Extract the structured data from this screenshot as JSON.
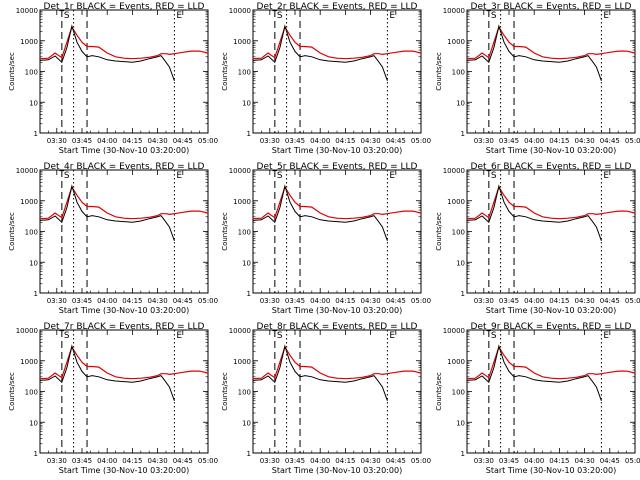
{
  "chart_data": {
    "type": "line",
    "common": {
      "ylabel": "Counts/sec",
      "xlabel": "Start Time (30-Nov-10 03:20:00)",
      "xticks": [
        "03:30",
        "03:45",
        "04:00",
        "04:15",
        "04:30",
        "04:45",
        "05:00"
      ],
      "xtick_minutes": [
        10,
        25,
        40,
        55,
        70,
        85,
        100
      ],
      "xlim_minutes": [
        0,
        100
      ],
      "yscale": "log",
      "ylim": [
        1,
        10000
      ],
      "yticks": [
        1,
        10,
        100,
        1000,
        10000
      ],
      "ytick_labels": [
        "1",
        "10",
        "100",
        "1000",
        "10000"
      ],
      "series_names": [
        "Events",
        "LLD"
      ],
      "series_colors": [
        "#000000",
        "#e00000"
      ],
      "markers": [
        {
          "label": "S",
          "minute": 13,
          "style": "dashed"
        },
        {
          "label": "",
          "minute": 20,
          "style": "dotted"
        },
        {
          "label": "",
          "minute": 28,
          "style": "dashed"
        },
        {
          "label": "E",
          "minute": 80,
          "style": "dotted"
        }
      ]
    },
    "panels": [
      {
        "title": "Det_1r BLACK = Events, RED = LLD"
      },
      {
        "title": "Det_2r BLACK = Events, RED = LLD"
      },
      {
        "title": "Det_3r BLACK = Events, RED = LLD"
      },
      {
        "title": "Det_4r BLACK = Events, RED = LLD"
      },
      {
        "title": "Det_5r BLACK = Events, RED = LLD"
      },
      {
        "title": "Det_6r BLACK = Events, RED = LLD"
      },
      {
        "title": "Det_7r BLACK = Events, RED = LLD"
      },
      {
        "title": "Det_8r BLACK = Events, RED = LLD"
      },
      {
        "title": "Det_9r BLACK = Events, RED = LLD"
      }
    ],
    "x": [
      0,
      5,
      9,
      13,
      16,
      19,
      22,
      25,
      28,
      31,
      35,
      40,
      45,
      50,
      55,
      60,
      65,
      70,
      72,
      75,
      77,
      80,
      85,
      90,
      95,
      100
    ],
    "series": [
      {
        "values": [
          230,
          240,
          320,
          200,
          600,
          3000,
          900,
          450,
          300,
          330,
          300,
          240,
          220,
          210,
          200,
          220,
          260,
          300,
          330,
          200,
          140,
          50,
          null,
          null,
          null,
          null
        ]
      },
      {
        "values": [
          260,
          270,
          400,
          280,
          900,
          2800,
          1500,
          900,
          650,
          650,
          620,
          400,
          300,
          270,
          260,
          270,
          290,
          330,
          380,
          380,
          360,
          380,
          420,
          460,
          460,
          400
        ]
      }
    ]
  }
}
